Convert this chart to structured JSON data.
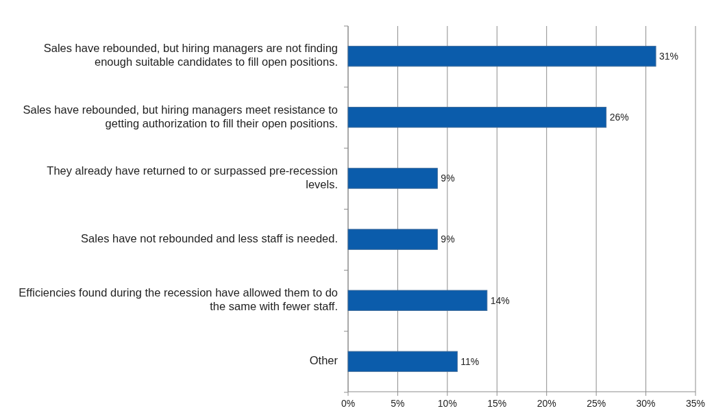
{
  "chart_data": {
    "type": "bar",
    "orientation": "horizontal",
    "categories": [
      "Sales have rebounded, but hiring managers are not finding enough suitable candidates to fill open positions.",
      "Sales have rebounded, but hiring managers meet resistance to getting authorization to fill their open positions.",
      "They already have returned to or surpassed pre-recession levels.",
      "Sales have not rebounded and less staff is needed.",
      "Efficiencies found during the recession have allowed them to do the same with fewer staff.",
      "Other"
    ],
    "values": [
      31,
      26,
      9,
      9,
      14,
      11
    ],
    "color": "#0b5cab",
    "xlim": [
      0,
      35
    ],
    "xticks": [
      {
        "value": 0,
        "label": "0%"
      },
      {
        "value": 5,
        "label": "5%"
      },
      {
        "value": 10,
        "label": "10%"
      },
      {
        "value": 15,
        "label": "15%"
      },
      {
        "value": 20,
        "label": "20%"
      },
      {
        "value": 25,
        "label": "25%"
      },
      {
        "value": 30,
        "label": "30%"
      },
      {
        "value": 35,
        "label": "35%"
      }
    ],
    "value_labels": [
      "31%",
      "26%",
      "9%",
      "9%",
      "14%",
      "11%"
    ],
    "grid": "x"
  }
}
